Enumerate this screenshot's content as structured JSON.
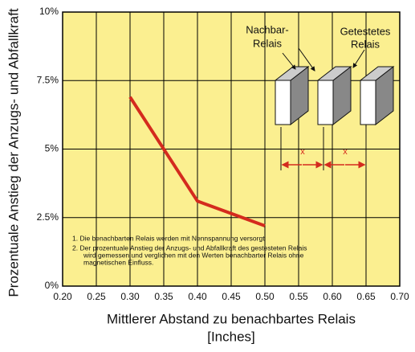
{
  "chart_data": {
    "type": "line",
    "ylabel": "Prozentuale Anstieg der Anzugs- und Abfallkraft",
    "xlabel": "Mittlerer Abstand zu benachbartes Relais",
    "xlabel_unit": "[Inches]",
    "x": [
      0.3,
      0.4,
      0.5
    ],
    "series": [
      {
        "color": "#d42b1e",
        "values": [
          6.9,
          3.1,
          2.2
        ]
      }
    ],
    "xlim": [
      0.2,
      0.7
    ],
    "xticks": [
      {
        "value": 0.2,
        "label": "0.20"
      },
      {
        "value": 0.25,
        "label": "0.25"
      },
      {
        "value": 0.3,
        "label": "0.30"
      },
      {
        "value": 0.35,
        "label": "0.35"
      },
      {
        "value": 0.4,
        "label": "0.40"
      },
      {
        "value": 0.45,
        "label": "0.45"
      },
      {
        "value": 0.5,
        "label": "0.50"
      },
      {
        "value": 0.55,
        "label": "0.55"
      },
      {
        "value": 0.6,
        "label": "0.60"
      },
      {
        "value": 0.65,
        "label": "0.65"
      },
      {
        "value": 0.7,
        "label": "0.70"
      }
    ],
    "ylim": [
      0,
      10
    ],
    "yticks": [
      {
        "value": 0,
        "label": "0%"
      },
      {
        "value": 2.5,
        "label": "2.5%"
      },
      {
        "value": 5,
        "label": "5%"
      },
      {
        "value": 7.5,
        "label": "7.5%"
      },
      {
        "value": 10,
        "label": "10%"
      }
    ],
    "grid": true,
    "background": "#fbef90",
    "notes": [
      "1. Die benachbarten Relais werden mit Nennspannung versorgt",
      "2. Der prozentuale Anstieg der Anzugs- und Abfallkraft des gestesteten Relais",
      "wird gemessen und verglichen mit den Werten benachbarter Relais ohne",
      "magnetischen Einfluss."
    ],
    "diagram": {
      "neighbor_label": [
        "Nachbar-",
        "Relais"
      ],
      "tested_label": [
        "Getestetes",
        "Relais"
      ],
      "distance_labels": [
        "x",
        "x"
      ]
    }
  }
}
